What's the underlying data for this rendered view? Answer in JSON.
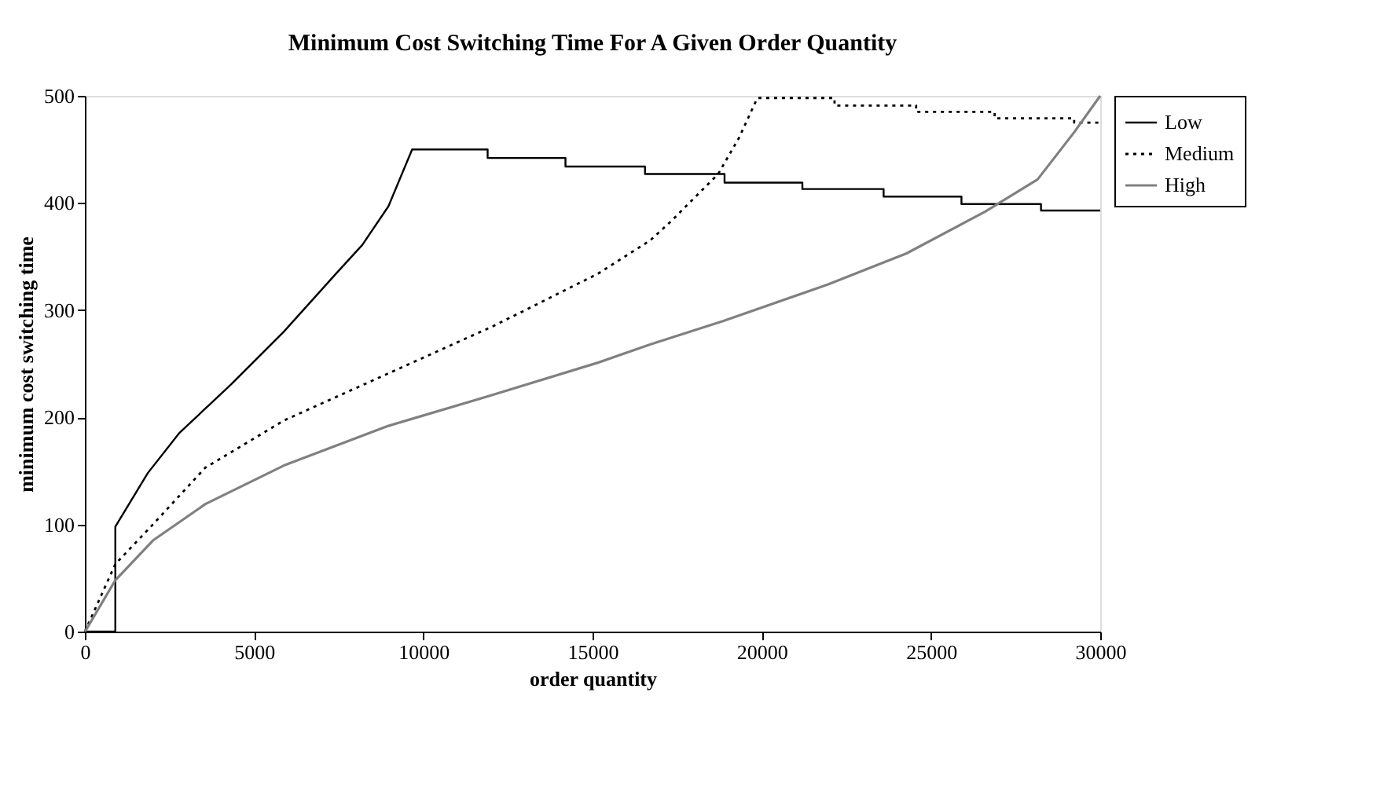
{
  "chart_data": {
    "type": "line",
    "title": "Minimum Cost Switching Time For A Given Order Quantity",
    "xlabel": "order quantity",
    "ylabel": "minimum cost switching time",
    "xlim": [
      0,
      30000
    ],
    "xticks": [
      0,
      5000,
      10000,
      15000,
      20000,
      25000,
      30000
    ],
    "ylim": [
      0,
      500
    ],
    "yticks": [
      0,
      100,
      200,
      300,
      400,
      500
    ],
    "grid": false,
    "legend": "right",
    "marker": "none",
    "series": [
      {
        "name": "Low",
        "color": "#000000",
        "line_style": "solid",
        "x": [
          0,
          900,
          900,
          1860,
          2780,
          4330,
          5880,
          7420,
          8200,
          8970,
          9670,
          11900,
          11900,
          14200,
          14200,
          16550,
          16550,
          18900,
          18900,
          21200,
          21200,
          23600,
          23600,
          25900,
          25900,
          28250,
          28250,
          30000
        ],
        "values": [
          0,
          0,
          98,
          148,
          185,
          231,
          280,
          334,
          361,
          397,
          450,
          450,
          442,
          442,
          434,
          434,
          427,
          427,
          419,
          419,
          413,
          413,
          406,
          406,
          399,
          399,
          393,
          393
        ]
      },
      {
        "name": "Medium",
        "color": "#000000",
        "line_style": "dotted",
        "x": [
          0,
          900,
          2010,
          3560,
          5880,
          8970,
          12060,
          15160,
          16700,
          17320,
          18710,
          19330,
          19870,
          22150,
          22150,
          24560,
          24560,
          26880,
          26880,
          29230,
          29230,
          30000
        ],
        "values": [
          0,
          63,
          100,
          153,
          197,
          241,
          285,
          334,
          365,
          383,
          427,
          461,
          498,
          498,
          491,
          491,
          485,
          485,
          479,
          479,
          475,
          475
        ]
      },
      {
        "name": "High",
        "color": "#808080",
        "line_style": "solid",
        "x": [
          0,
          80,
          900,
          2010,
          3560,
          5880,
          8970,
          12060,
          15160,
          16700,
          18870,
          21960,
          24280,
          26600,
          28150,
          29230,
          30000
        ],
        "values": [
          0,
          4,
          48,
          85,
          119,
          155,
          192,
          221,
          251,
          268,
          290,
          324,
          353,
          392,
          422,
          466,
          500
        ]
      }
    ]
  }
}
